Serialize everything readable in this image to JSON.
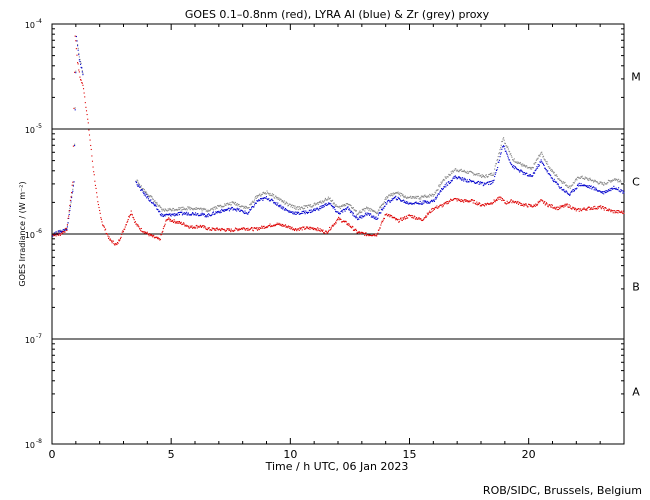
{
  "chart_data": {
    "type": "scatter",
    "title": "GOES 0.1–0.8nm (red), LYRA Al (blue) & Zr (grey) proxy",
    "xlabel": "Time / h UTC, 06 Jan 2023",
    "ylabel": "GOES Irradiance / (W m⁻²)",
    "xlim": [
      0,
      24
    ],
    "ylim_log10": [
      -8,
      -4
    ],
    "y_scale": "log",
    "x_ticks": [
      0,
      5,
      10,
      15,
      20
    ],
    "x_tick_labels": [
      "0",
      "5",
      "10",
      "15",
      "20"
    ],
    "y_tick_labels": [
      {
        "base": "10",
        "exp": "-8"
      },
      {
        "base": "10",
        "exp": "-7"
      },
      {
        "base": "10",
        "exp": "-6"
      },
      {
        "base": "10",
        "exp": "-5"
      },
      {
        "base": "10",
        "exp": "-4"
      }
    ],
    "flare_class_lines": [
      -7,
      -6,
      -5
    ],
    "flare_class_labels": [
      {
        "label": "A",
        "log10": -7.5
      },
      {
        "label": "B",
        "log10": -6.5
      },
      {
        "label": "C",
        "log10": -5.5
      },
      {
        "label": "M",
        "log10": -4.5
      }
    ],
    "series": [
      {
        "name": "GOES 0.1-0.8nm",
        "color": "#dd0000",
        "t": [
          0.0,
          0.3,
          0.6,
          0.85,
          0.95,
          1.05,
          1.15,
          1.3,
          1.5,
          1.7,
          1.9,
          2.1,
          2.4,
          2.7,
          3.0,
          3.3,
          3.5,
          3.7,
          3.9,
          4.2,
          4.5,
          4.8,
          5.2,
          5.5,
          5.8,
          6.2,
          6.6,
          7.0,
          7.5,
          8.0,
          8.5,
          9.0,
          9.4,
          9.8,
          10.2,
          10.6,
          11.0,
          11.5,
          12.0,
          12.4,
          12.8,
          13.2,
          13.6,
          14.0,
          14.5,
          15.0,
          15.5,
          16.0,
          16.4,
          16.8,
          17.2,
          17.6,
          18.0,
          18.4,
          18.8,
          19.0,
          19.3,
          19.8,
          20.2,
          20.5,
          20.8,
          21.2,
          21.6,
          22.0,
          22.5,
          23.0,
          23.5,
          24.0
        ],
        "log10": [
          -6.0,
          -6.0,
          -5.95,
          -5.5,
          -4.1,
          -4.35,
          -4.5,
          -4.6,
          -4.95,
          -5.35,
          -5.7,
          -5.9,
          -6.05,
          -6.1,
          -5.95,
          -5.78,
          -5.9,
          -5.95,
          -5.98,
          -6.02,
          -6.05,
          -5.85,
          -5.88,
          -5.9,
          -5.93,
          -5.92,
          -5.95,
          -5.95,
          -5.96,
          -5.94,
          -5.95,
          -5.92,
          -5.9,
          -5.92,
          -5.95,
          -5.94,
          -5.94,
          -5.98,
          -5.85,
          -5.9,
          -5.98,
          -6.0,
          -6.0,
          -5.8,
          -5.87,
          -5.82,
          -5.86,
          -5.75,
          -5.72,
          -5.66,
          -5.68,
          -5.68,
          -5.72,
          -5.7,
          -5.65,
          -5.7,
          -5.68,
          -5.72,
          -5.73,
          -5.68,
          -5.72,
          -5.75,
          -5.72,
          -5.77,
          -5.75,
          -5.74,
          -5.78,
          -5.79
        ]
      },
      {
        "name": "LYRA Al proxy",
        "color": "#0000cc",
        "t": [
          0.0,
          0.6,
          0.9,
          1.0,
          1.1,
          1.3,
          3.5,
          3.8,
          4.2,
          4.6,
          5.5,
          6.0,
          6.5,
          7.0,
          7.6,
          8.2,
          8.6,
          9.0,
          9.5,
          9.9,
          10.3,
          10.8,
          11.2,
          11.6,
          12.0,
          12.4,
          12.8,
          13.2,
          13.6,
          14.0,
          14.4,
          14.9,
          15.4,
          16.0,
          16.4,
          16.9,
          17.3,
          17.7,
          18.1,
          18.5,
          18.9,
          19.3,
          19.8,
          20.1,
          20.5,
          20.9,
          21.3,
          21.7,
          22.1,
          22.6,
          23.1,
          23.6,
          24.0
        ],
        "log10": [
          -6.0,
          -5.95,
          -5.5,
          -4.12,
          -4.3,
          -4.5,
          -5.5,
          -5.6,
          -5.7,
          -5.82,
          -5.8,
          -5.8,
          -5.82,
          -5.78,
          -5.75,
          -5.8,
          -5.68,
          -5.65,
          -5.72,
          -5.78,
          -5.8,
          -5.78,
          -5.75,
          -5.7,
          -5.8,
          -5.75,
          -5.85,
          -5.8,
          -5.85,
          -5.7,
          -5.65,
          -5.7,
          -5.7,
          -5.68,
          -5.55,
          -5.45,
          -5.48,
          -5.5,
          -5.52,
          -5.5,
          -5.15,
          -5.35,
          -5.42,
          -5.45,
          -5.3,
          -5.45,
          -5.55,
          -5.62,
          -5.52,
          -5.55,
          -5.6,
          -5.55,
          -5.6
        ]
      },
      {
        "name": "LYRA Zr proxy",
        "color": "#888888",
        "t": [
          0.0,
          0.6,
          0.9,
          1.0,
          1.1,
          1.3,
          3.5,
          3.8,
          4.2,
          4.6,
          5.5,
          6.0,
          6.5,
          7.0,
          7.6,
          8.2,
          8.6,
          9.0,
          9.5,
          9.9,
          10.3,
          10.8,
          11.2,
          11.6,
          12.0,
          12.4,
          12.8,
          13.2,
          13.6,
          14.0,
          14.4,
          14.9,
          15.4,
          16.0,
          16.4,
          16.9,
          17.3,
          17.7,
          18.1,
          18.5,
          18.9,
          19.3,
          19.8,
          20.1,
          20.5,
          20.9,
          21.3,
          21.7,
          22.1,
          22.6,
          23.1,
          23.6,
          24.0
        ],
        "log10": [
          -6.0,
          -5.95,
          -5.5,
          -4.1,
          -4.28,
          -4.48,
          -5.48,
          -5.57,
          -5.66,
          -5.77,
          -5.75,
          -5.75,
          -5.77,
          -5.73,
          -5.7,
          -5.75,
          -5.63,
          -5.6,
          -5.66,
          -5.72,
          -5.75,
          -5.73,
          -5.7,
          -5.65,
          -5.75,
          -5.7,
          -5.8,
          -5.75,
          -5.8,
          -5.65,
          -5.6,
          -5.65,
          -5.65,
          -5.62,
          -5.48,
          -5.38,
          -5.4,
          -5.42,
          -5.45,
          -5.42,
          -5.08,
          -5.28,
          -5.35,
          -5.38,
          -5.22,
          -5.38,
          -5.48,
          -5.55,
          -5.45,
          -5.48,
          -5.52,
          -5.47,
          -5.52
        ]
      }
    ]
  },
  "footer": {
    "credit": "ROB/SIDC, Brussels, Belgium"
  }
}
